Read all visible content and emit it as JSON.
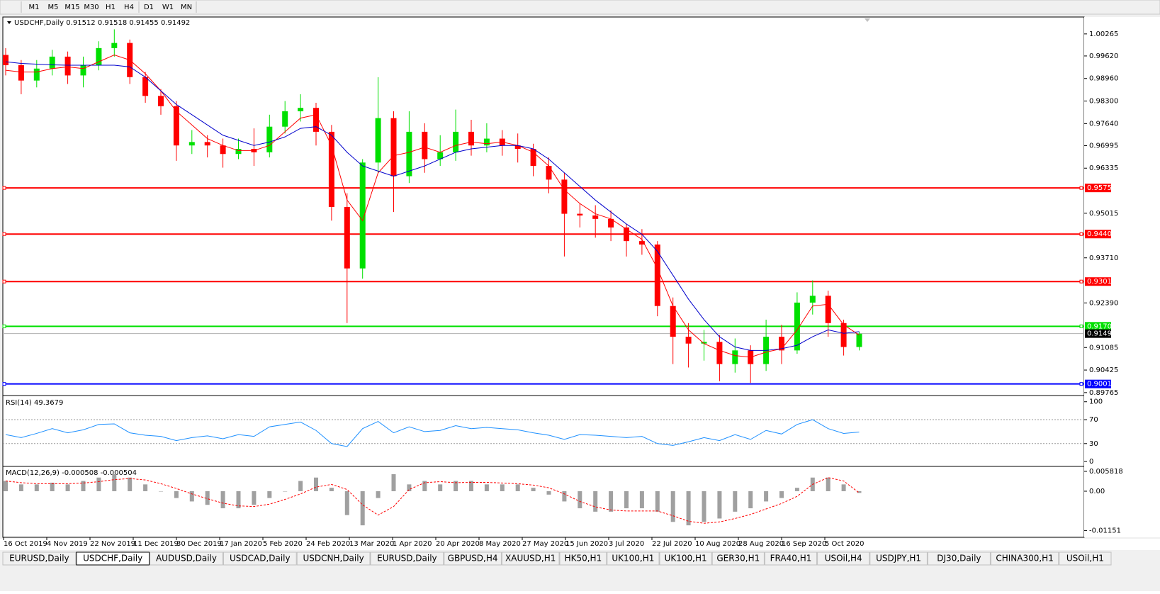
{
  "toolbar": {
    "timeframes": [
      "M1",
      "M5",
      "M15",
      "M30",
      "H1",
      "H4",
      "D1",
      "W1",
      "MN"
    ]
  },
  "chart_data": [
    {
      "type": "candlestick",
      "symbol": "USDCHF,Daily",
      "ohlc": [
        0.91512,
        0.91518,
        0.91455,
        0.91492
      ],
      "up_color": "#00e000",
      "down_color": "#ff0000",
      "open": [
        0.9965,
        0.9935,
        0.989,
        0.9925,
        0.996,
        0.9905,
        0.9935,
        0.9985,
        1.0,
        0.99,
        0.9845,
        0.9815,
        0.97,
        0.971,
        0.97,
        0.9675,
        0.969,
        0.968,
        0.9755,
        0.98,
        0.981,
        0.974,
        0.952,
        0.934,
        0.965,
        0.978,
        0.961,
        0.974,
        0.966,
        0.968,
        0.974,
        0.97,
        0.972,
        0.97,
        0.969,
        0.964,
        0.96,
        0.95,
        0.9495,
        0.9485,
        0.946,
        0.942,
        0.941,
        0.923,
        0.914,
        0.912,
        0.9125,
        0.906,
        0.91,
        0.906,
        0.914,
        0.91,
        0.924,
        0.926,
        0.918,
        0.911
      ],
      "high": [
        0.9985,
        0.995,
        0.995,
        0.998,
        0.9975,
        0.996,
        1.0005,
        1.004,
        1.001,
        0.9915,
        0.9865,
        0.983,
        0.9745,
        0.973,
        0.972,
        0.972,
        0.975,
        0.979,
        0.983,
        0.985,
        0.9825,
        0.976,
        0.956,
        0.966,
        0.99,
        0.98,
        0.98,
        0.9765,
        0.973,
        0.9805,
        0.9775,
        0.9765,
        0.9745,
        0.9735,
        0.9705,
        0.9665,
        0.962,
        0.953,
        0.9525,
        0.951,
        0.947,
        0.9455,
        0.942,
        0.9255,
        0.918,
        0.916,
        0.9145,
        0.9135,
        0.9115,
        0.919,
        0.9175,
        0.927,
        0.9305,
        0.9275,
        0.919,
        0.9155
      ],
      "low": [
        0.9905,
        0.985,
        0.987,
        0.9905,
        0.988,
        0.987,
        0.992,
        0.996,
        0.988,
        0.9825,
        0.979,
        0.9655,
        0.9675,
        0.9665,
        0.9635,
        0.966,
        0.964,
        0.9665,
        0.9735,
        0.977,
        0.97,
        0.948,
        0.918,
        0.931,
        0.962,
        0.9505,
        0.959,
        0.962,
        0.964,
        0.9655,
        0.967,
        0.968,
        0.967,
        0.965,
        0.961,
        0.956,
        0.9375,
        0.946,
        0.943,
        0.942,
        0.9375,
        0.938,
        0.92,
        0.906,
        0.905,
        0.907,
        0.901,
        0.9035,
        0.9005,
        0.904,
        0.906,
        0.909,
        0.9205,
        0.914,
        0.9085,
        0.91
      ],
      "close": [
        0.9935,
        0.989,
        0.9925,
        0.996,
        0.9905,
        0.9935,
        0.9985,
        1.0,
        0.99,
        0.9845,
        0.9815,
        0.97,
        0.971,
        0.97,
        0.9675,
        0.969,
        0.968,
        0.9755,
        0.98,
        0.981,
        0.974,
        0.952,
        0.934,
        0.965,
        0.978,
        0.961,
        0.974,
        0.966,
        0.968,
        0.974,
        0.97,
        0.972,
        0.97,
        0.969,
        0.964,
        0.96,
        0.95,
        0.9495,
        0.9485,
        0.946,
        0.942,
        0.941,
        0.923,
        0.914,
        0.912,
        0.9125,
        0.906,
        0.91,
        0.906,
        0.914,
        0.91,
        0.924,
        0.926,
        0.918,
        0.911,
        0.9149
      ],
      "series": [
        {
          "color": "#ff0000",
          "values": [
            0.992,
            0.9915,
            0.9915,
            0.9925,
            0.993,
            0.9925,
            0.9945,
            0.9965,
            0.995,
            0.991,
            0.986,
            0.98,
            0.976,
            0.972,
            0.97,
            0.9685,
            0.9685,
            0.97,
            0.974,
            0.978,
            0.979,
            0.97,
            0.954,
            0.948,
            0.962,
            0.967,
            0.968,
            0.9695,
            0.968,
            0.97,
            0.971,
            0.9705,
            0.971,
            0.97,
            0.968,
            0.964,
            0.957,
            0.953,
            0.95,
            0.9485,
            0.9455,
            0.9425,
            0.934,
            0.923,
            0.916,
            0.912,
            0.91,
            0.9085,
            0.908,
            0.9095,
            0.9105,
            0.916,
            0.923,
            0.9235,
            0.9175,
            0.9145
          ]
        },
        {
          "color": "#0000cc",
          "values": [
            0.9945,
            0.994,
            0.9938,
            0.9936,
            0.9935,
            0.9935,
            0.9935,
            0.9935,
            0.993,
            0.99,
            0.986,
            0.982,
            0.979,
            0.976,
            0.973,
            0.9715,
            0.97,
            0.971,
            0.9725,
            0.975,
            0.9755,
            0.973,
            0.968,
            0.964,
            0.9625,
            0.961,
            0.9625,
            0.964,
            0.966,
            0.968,
            0.969,
            0.9695,
            0.97,
            0.97,
            0.969,
            0.966,
            0.962,
            0.958,
            0.954,
            0.9505,
            0.947,
            0.944,
            0.939,
            0.932,
            0.925,
            0.919,
            0.914,
            0.911,
            0.91,
            0.91,
            0.9105,
            0.9115,
            0.914,
            0.916,
            0.915,
            0.9155
          ]
        }
      ],
      "levels": [
        {
          "value": 0.95756,
          "color": "#ff0000"
        },
        {
          "value": 0.94406,
          "color": "#ff0000"
        },
        {
          "value": 0.93016,
          "color": "#ff0000"
        },
        {
          "value": 0.91706,
          "color": "#00e000"
        },
        {
          "value": 0.90018,
          "color": "#0000ff"
        }
      ],
      "current": 0.91492,
      "ylim": [
        0.897,
        1.0076
      ],
      "yticks": [
        1.00265,
        {
          "value": 0.9962,
          "label": "0.99620"
        },
        {
          "value": 0.9896,
          "label": "0.98960"
        },
        {
          "value": 0.983,
          "label": "0.98300"
        },
        {
          "value": 0.9764,
          "label": "0.97640"
        },
        0.96995,
        0.96335,
        0.95015,
        {
          "value": 0.9371,
          "label": "0.93710"
        },
        {
          "value": 0.9239,
          "label": "0.92390"
        },
        0.91085,
        0.90425,
        0.89765
      ],
      "x_labels": [
        "16 Oct 2019",
        "4 Nov 2019",
        "22 Nov 2019",
        "11 Dec 2019",
        "30 Dec 2019",
        "17 Jan 2020",
        "5 Feb 2020",
        "24 Feb 2020",
        "13 Mar 2020",
        "1 Apr 2020",
        "20 Apr 2020",
        "8 May 2020",
        "27 May 2020",
        "15 Jun 2020",
        "3 Jul 2020",
        "22 Jul 2020",
        "10 Aug 2020",
        "28 Aug 2020",
        "16 Sep 2020",
        "5 Oct 2020"
      ]
    },
    {
      "type": "line",
      "title": "RSI(14)",
      "current": 49.3679,
      "color": "#1e90ff",
      "values": [
        45,
        40,
        47,
        55,
        48,
        53,
        62,
        63,
        48,
        44,
        42,
        35,
        40,
        43,
        38,
        45,
        42,
        58,
        62,
        66,
        52,
        30,
        25,
        55,
        67,
        48,
        58,
        50,
        52,
        60,
        55,
        57,
        55,
        53,
        48,
        44,
        37,
        45,
        44,
        42,
        40,
        42,
        30,
        27,
        33,
        40,
        35,
        45,
        37,
        52,
        46,
        62,
        70,
        55,
        47,
        49.37
      ],
      "ylim": [
        -7,
        108
      ],
      "yticks": [
        100,
        70,
        30,
        0
      ],
      "levels": [
        70,
        30
      ]
    },
    {
      "type": "macd",
      "title": "MACD(12,26,9)",
      "current": [
        -0.000508,
        -0.000504
      ],
      "color": "#a0a0a0",
      "signal_color": "#ff0000",
      "values": [
        0.003,
        0.002,
        0.002,
        0.0025,
        0.002,
        0.003,
        0.004,
        0.005,
        0.004,
        0.002,
        0,
        -0.002,
        -0.003,
        -0.004,
        -0.005,
        -0.005,
        -0.004,
        -0.002,
        0,
        0.003,
        0.004,
        0.001,
        -0.007,
        -0.01,
        -0.002,
        0.005,
        0.002,
        0.003,
        0.002,
        0.003,
        0.003,
        0.002,
        0.002,
        0.002,
        0.001,
        -0.001,
        -0.003,
        -0.005,
        -0.006,
        -0.006,
        -0.005,
        -0.005,
        -0.006,
        -0.009,
        -0.01,
        -0.009,
        -0.008,
        -0.006,
        -0.005,
        -0.003,
        -0.002,
        0.001,
        0.004,
        0.004,
        0.002,
        -0.0005
      ],
      "signal": [
        0.003,
        0.0025,
        0.0022,
        0.0022,
        0.0022,
        0.0024,
        0.0028,
        0.0034,
        0.0037,
        0.0033,
        0.0022,
        0.0008,
        -0.0008,
        -0.0022,
        -0.0035,
        -0.0043,
        -0.0045,
        -0.0038,
        -0.0024,
        -0.0008,
        0.0012,
        0.002,
        0.0005,
        -0.004,
        -0.007,
        -0.0045,
        0.0005,
        0.0025,
        0.0028,
        0.0025,
        0.0026,
        0.0026,
        0.0024,
        0.0022,
        0.0018,
        0.001,
        -0.0008,
        -0.003,
        -0.0046,
        -0.0055,
        -0.0058,
        -0.0058,
        -0.0058,
        -0.0072,
        -0.0088,
        -0.0094,
        -0.009,
        -0.008,
        -0.0068,
        -0.0052,
        -0.0036,
        -0.0015,
        0.002,
        0.004,
        0.003,
        -0.0005
      ],
      "ylim": [
        -0.0133,
        0.00706
      ],
      "yticks": [
        0.005818,
        {
          "value": 0,
          "label": "0.00"
        },
        -0.01151
      ]
    }
  ],
  "tabs": {
    "active": 1,
    "items": [
      "EURUSD,Daily",
      "USDCHF,Daily",
      "AUDUSD,Daily",
      "USDCAD,Daily",
      "USDCNH,Daily",
      "EURUSD,Daily",
      "GBPUSD,H4",
      "XAUUSD,H1",
      "HK50,H1",
      "UK100,H1",
      "UK100,H1",
      "GER30,H1",
      "FRA40,H1",
      "USOil,H4",
      "USDJPY,H1",
      "DJ30,Daily",
      "CHINA300,H1",
      "USOil,H1"
    ]
  }
}
